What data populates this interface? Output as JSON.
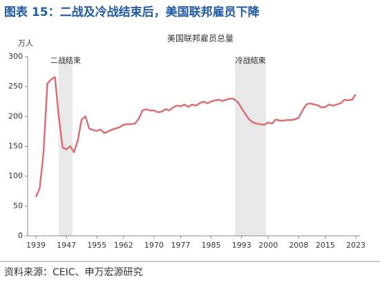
{
  "title": "图表 15：二战及冷战结束后，美国联邦雇员下降",
  "source": "资料来源：CEIC、申万宏源研究",
  "chart_data": {
    "type": "line",
    "title": "美国联邦雇员总量",
    "y_unit": "万人",
    "x": [
      1939,
      1940,
      1941,
      1942,
      1943,
      1944,
      1945,
      1946,
      1947,
      1948,
      1949,
      1950,
      1951,
      1952,
      1953,
      1954,
      1955,
      1956,
      1957,
      1958,
      1959,
      1960,
      1961,
      1962,
      1963,
      1964,
      1965,
      1966,
      1967,
      1968,
      1969,
      1970,
      1971,
      1972,
      1973,
      1974,
      1975,
      1976,
      1977,
      1978,
      1979,
      1980,
      1981,
      1982,
      1983,
      1984,
      1985,
      1986,
      1987,
      1988,
      1989,
      1990,
      1991,
      1992,
      1993,
      1994,
      1995,
      1996,
      1997,
      1998,
      1999,
      2000,
      2001,
      2002,
      2003,
      2004,
      2005,
      2006,
      2007,
      2008,
      2009,
      2010,
      2011,
      2012,
      2013,
      2014,
      2015,
      2016,
      2017,
      2018,
      2019,
      2020,
      2021,
      2022,
      2023
    ],
    "series": [
      {
        "name": "美国联邦雇员总量",
        "color": "#db6e72",
        "values": [
          65,
          80,
          140,
          255,
          262,
          266,
          200,
          148,
          145,
          150,
          140,
          160,
          195,
          200,
          180,
          177,
          176,
          178,
          172,
          175,
          178,
          180,
          182,
          186,
          187,
          187,
          188,
          196,
          210,
          212,
          210,
          210,
          207,
          208,
          212,
          210,
          215,
          218,
          217,
          220,
          216,
          220,
          218,
          222,
          225,
          222,
          225,
          227,
          228,
          226,
          228,
          230,
          229,
          224,
          214,
          204,
          195,
          190,
          188,
          187,
          186,
          190,
          188,
          195,
          193,
          193,
          194,
          194,
          195,
          198,
          210,
          220,
          222,
          220,
          219,
          215,
          216,
          220,
          218,
          220,
          222,
          228,
          227,
          228,
          237
        ]
      }
    ],
    "shaded": [
      {
        "label": "二战结束",
        "range": [
          1945,
          1948.6
        ]
      },
      {
        "label": "冷战结束",
        "range": [
          1991.3,
          1999.4
        ]
      }
    ],
    "xlim": [
      1939,
      2023
    ],
    "xticks": [
      1939,
      1947,
      1955,
      1962,
      1970,
      1977,
      1985,
      1993,
      2000,
      2008,
      2015,
      2023
    ],
    "ylim": [
      0,
      300
    ],
    "yticks": [
      0,
      50,
      100,
      150,
      200,
      250,
      300
    ]
  }
}
